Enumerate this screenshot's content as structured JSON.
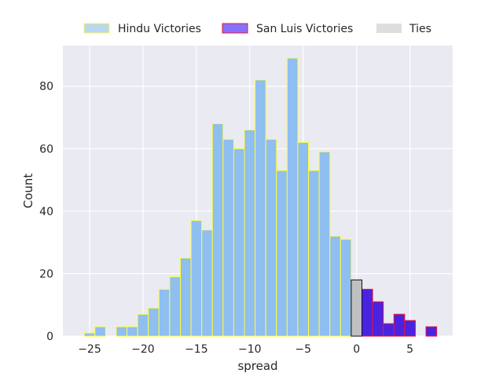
{
  "chart_data": {
    "type": "bar",
    "title": "",
    "xlabel": "spread",
    "ylabel": "Count",
    "xlim": [
      -27.5,
      9
    ],
    "ylim": [
      0,
      93
    ],
    "grid": true,
    "legend_placement": "top-center",
    "xticks": [
      -25,
      -20,
      -15,
      -10,
      -5,
      0,
      5
    ],
    "yticks": [
      0,
      20,
      40,
      60,
      80
    ],
    "xtick_labels": [
      "−25",
      "−20",
      "−15",
      "−10",
      "−5",
      "0",
      "5"
    ],
    "ytick_labels": [
      "0",
      "20",
      "40",
      "60",
      "80"
    ],
    "bin_width": 1,
    "series": [
      {
        "name": "Hindu Victories",
        "fill": "#8fbef0",
        "edge": "#ffff33",
        "x": [
          -25,
          -24,
          -22,
          -21,
          -20,
          -19,
          -18,
          -17,
          -16,
          -15,
          -14,
          -13,
          -12,
          -11,
          -10,
          -9,
          -8,
          -7,
          -6,
          -5,
          -4,
          -3,
          -2,
          -1
        ],
        "values": [
          1,
          3,
          3,
          3,
          7,
          9,
          15,
          19,
          25,
          37,
          34,
          68,
          63,
          60,
          66,
          82,
          63,
          53,
          89,
          62,
          53,
          59,
          32,
          31
        ]
      },
      {
        "name": "San Luis Victories",
        "fill": "#4a23e0",
        "edge": "#ee1133",
        "x": [
          1,
          2,
          3,
          4,
          5,
          7
        ],
        "values": [
          15,
          11,
          4,
          7,
          5,
          3
        ]
      },
      {
        "name": "Ties",
        "fill": "#c0c0c0",
        "edge": "#111111",
        "x": [
          0
        ],
        "values": [
          18
        ]
      }
    ]
  },
  "colors": {
    "plot_background": "#eaeaf2",
    "grid": "#ffffff",
    "legend_ties_patch": "#dedede"
  }
}
